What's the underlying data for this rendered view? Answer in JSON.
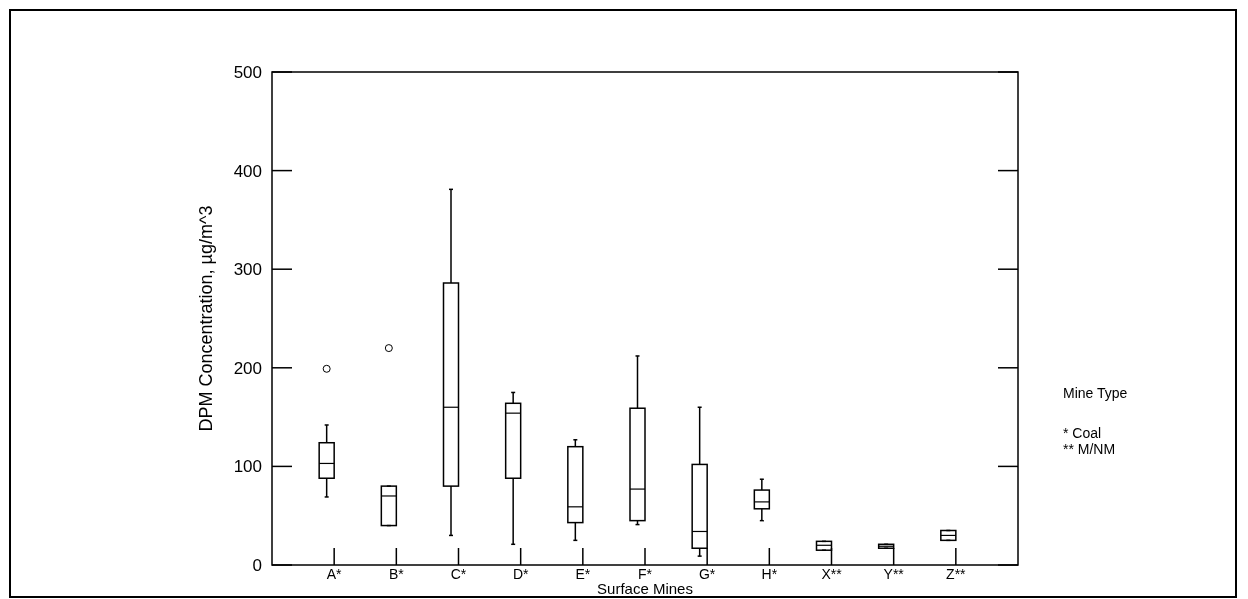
{
  "chart_data": {
    "type": "box",
    "xlabel": "Surface Mines",
    "ylabel": "DPM Concentration, µg/m^3",
    "categories": [
      "A*",
      "B*",
      "C*",
      "D*",
      "E*",
      "F*",
      "G*",
      "H*",
      "X**",
      "Y**",
      "Z**"
    ],
    "boxes": [
      {
        "low": 69,
        "q1": 88,
        "median": 103,
        "q3": 124,
        "high": 142,
        "outliers": [
          199
        ]
      },
      {
        "low": 40,
        "q1": 40,
        "median": 70,
        "q3": 80,
        "high": 80,
        "outliers": [
          220
        ]
      },
      {
        "low": 30,
        "q1": 80,
        "median": 160,
        "q3": 286,
        "high": 381
      },
      {
        "low": 21,
        "q1": 88,
        "median": 154,
        "q3": 164,
        "high": 175
      },
      {
        "low": 25,
        "q1": 43,
        "median": 59,
        "q3": 120,
        "high": 127
      },
      {
        "low": 41,
        "q1": 45,
        "median": 77,
        "q3": 159,
        "high": 212
      },
      {
        "low": 9,
        "q1": 17,
        "median": 34,
        "q3": 102,
        "high": 160
      },
      {
        "low": 45,
        "q1": 57,
        "median": 64,
        "q3": 76,
        "high": 87
      },
      {
        "low": 15,
        "q1": 15,
        "median": 20,
        "q3": 24,
        "high": 24
      },
      {
        "low": 17,
        "q1": 17,
        "median": 19,
        "q3": 21,
        "high": 21
      },
      {
        "low": 25,
        "q1": 25,
        "median": 30,
        "q3": 35,
        "high": 35
      }
    ],
    "ylim": [
      0,
      500
    ],
    "yticks": [
      0,
      100,
      200,
      300,
      400,
      500
    ],
    "color": "#000000",
    "annotations": [
      "Mine Type",
      "* Coal",
      "** M/NM"
    ]
  }
}
